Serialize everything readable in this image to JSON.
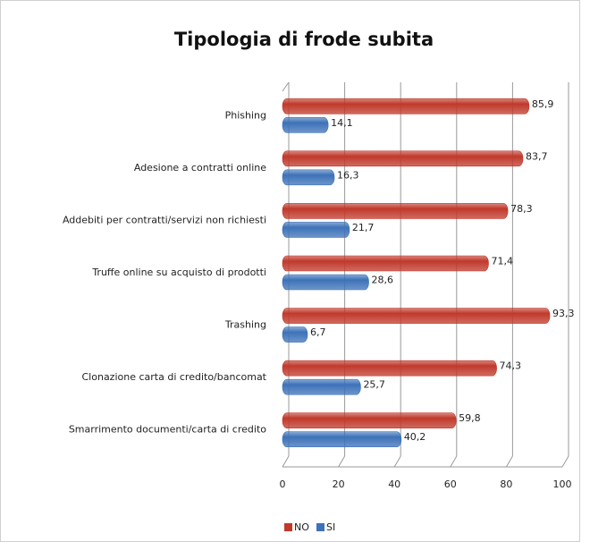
{
  "chart_data": {
    "type": "bar",
    "orientation": "horizontal",
    "title": "Tipologia di frode subita",
    "categories": [
      "Phishing",
      "Adesione a contratti online",
      "Addebiti per contratti/servizi non richiesti",
      "Truffe online su acquisto di prodotti",
      "Trashing",
      "Clonazione carta di credito/bancomat",
      "Smarrimento documenti/carta  di credito"
    ],
    "series": [
      {
        "name": "NO",
        "color": "#c0392b",
        "values": [
          85.9,
          83.7,
          78.3,
          71.4,
          93.3,
          74.3,
          59.8
        ],
        "value_labels": [
          "85,9",
          "83,7",
          "78,3",
          "71,4",
          "93,3",
          "74,3",
          "59,8"
        ]
      },
      {
        "name": "SI",
        "color": "#3d72b8",
        "values": [
          14.1,
          16.3,
          21.7,
          28.6,
          6.7,
          25.7,
          40.2
        ],
        "value_labels": [
          "14,1",
          "16,3",
          "21,7",
          "28,6",
          "6,7",
          "25,7",
          "40,2"
        ]
      }
    ],
    "xlim": [
      0,
      100
    ],
    "xticks": [
      0,
      20,
      40,
      60,
      80,
      100
    ],
    "grid": true,
    "legend": "bottom"
  }
}
